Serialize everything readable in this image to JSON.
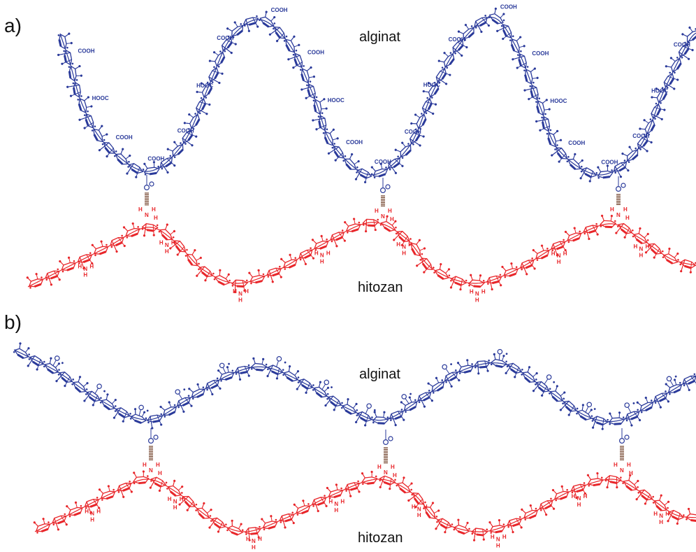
{
  "panels": [
    {
      "label": "a)",
      "top_chain_label": "alginat",
      "bottom_chain_label": "hitozan",
      "top_group_text": "COOH",
      "top_group_text_alt": "HOOC"
    },
    {
      "label": "b)",
      "top_chain_label": "alginat",
      "bottom_chain_label": "hitozan"
    }
  ],
  "atoms": {
    "O": "O",
    "N": "N",
    "H": "H"
  },
  "colors": {
    "alginate": "#2a3a9a",
    "chitosan": "#e8262a",
    "bond": "#6b3a22",
    "text": "#111111"
  }
}
